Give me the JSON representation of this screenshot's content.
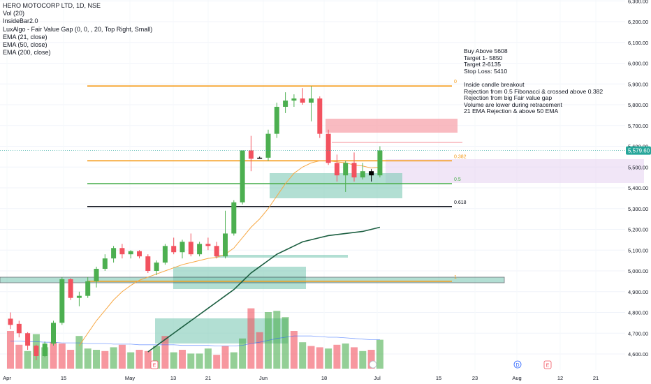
{
  "header": {
    "symbol_line": "HERO MOTOCORP LTD, 1D, NSE",
    "indicators": [
      "Vol (20)",
      "InsideBar2.0",
      "LuxAlgo - Fair Value Gap (0, 0, , 20, Top Right, Small)",
      "EMA (21, close)",
      "EMA (50, close)",
      "EMA (200, close)"
    ]
  },
  "notes": {
    "lines": [
      "Buy Above 5608",
      "Target 1- 5850",
      "Target 2-6135",
      "Stop Loss: 5410",
      "",
      "Inside candle breakout",
      "Rejection from 0.5 Fibonacci & crossed above 0.382",
      "Rejection from big Fair value gap",
      "Volume are lower during retracement",
      "21 EMA Rejection & above 50 EMA"
    ]
  },
  "colors": {
    "up": "#4caf50",
    "down": "#f2525f",
    "inside_bar": "#000000",
    "fib_0": "#f59a16",
    "fib_0382": "#f59a16",
    "fib_05": "#4caf50",
    "fib_0618": "#131722",
    "fib_1": "#f59a16",
    "ema21": "#f7a844",
    "ema50": "#1b5e40",
    "last_price_bg": "#26a69a"
  },
  "chart_data": {
    "type": "candlestick",
    "x_tick_labels": [
      "Apr",
      "15",
      "May",
      "13",
      "21",
      "Jun",
      "18",
      "Jul",
      "15",
      "23",
      "Aug",
      "12",
      "21"
    ],
    "y_tick_labels": [
      "4,600.00",
      "4,700.00",
      "4,800.00",
      "4,900.00",
      "5,000.00",
      "5,100.00",
      "5,200.00",
      "5,300.00",
      "5,400.00",
      "5,500.00",
      "5,600.00",
      "5,700.00",
      "5,800.00",
      "5,900.00",
      "6,000.00",
      "6,100.00",
      "6,200.00",
      "6,300.00"
    ],
    "ylim": [
      4570,
      6330
    ],
    "last_price": "5,579.60",
    "fib_levels": [
      {
        "label": "0",
        "price": 5890
      },
      {
        "label": "0.382",
        "price": 5530
      },
      {
        "label": "0.5",
        "price": 5420
      },
      {
        "label": "0.618",
        "price": 5310
      },
      {
        "label": "1",
        "price": 4950
      }
    ],
    "candles": [
      {
        "o": 4770,
        "h": 4800,
        "l": 4720,
        "c": 4740
      },
      {
        "o": 4745,
        "h": 4760,
        "l": 4680,
        "c": 4700
      },
      {
        "o": 4700,
        "h": 4705,
        "l": 4620,
        "c": 4640
      },
      {
        "o": 4640,
        "h": 4645,
        "l": 4570,
        "c": 4590
      },
      {
        "o": 4590,
        "h": 4660,
        "l": 4585,
        "c": 4650
      },
      {
        "o": 4650,
        "h": 4760,
        "l": 4640,
        "c": 4750
      },
      {
        "o": 4750,
        "h": 4970,
        "l": 4740,
        "c": 4960
      },
      {
        "o": 4960,
        "h": 4965,
        "l": 4860,
        "c": 4870
      },
      {
        "o": 4870,
        "h": 4900,
        "l": 4830,
        "c": 4880
      },
      {
        "o": 4880,
        "h": 4970,
        "l": 4870,
        "c": 4950
      },
      {
        "o": 4950,
        "h": 5020,
        "l": 4920,
        "c": 5010
      },
      {
        "o": 5010,
        "h": 5080,
        "l": 5000,
        "c": 5060
      },
      {
        "o": 5060,
        "h": 5120,
        "l": 5040,
        "c": 5110
      },
      {
        "o": 5110,
        "h": 5130,
        "l": 5060,
        "c": 5080
      },
      {
        "o": 5080,
        "h": 5100,
        "l": 5060,
        "c": 5095
      },
      {
        "o": 5095,
        "h": 5100,
        "l": 5060,
        "c": 5070
      },
      {
        "o": 5070,
        "h": 5080,
        "l": 4990,
        "c": 5000
      },
      {
        "o": 5000,
        "h": 5050,
        "l": 4980,
        "c": 5040
      },
      {
        "o": 5040,
        "h": 5130,
        "l": 5030,
        "c": 5120
      },
      {
        "o": 5120,
        "h": 5160,
        "l": 5080,
        "c": 5090
      },
      {
        "o": 5090,
        "h": 5150,
        "l": 5060,
        "c": 5140
      },
      {
        "o": 5140,
        "h": 5180,
        "l": 5070,
        "c": 5080
      },
      {
        "o": 5080,
        "h": 5140,
        "l": 5070,
        "c": 5130
      },
      {
        "o": 5130,
        "h": 5160,
        "l": 5100,
        "c": 5120
      },
      {
        "o": 5120,
        "h": 5140,
        "l": 5060,
        "c": 5070
      },
      {
        "o": 5070,
        "h": 5290,
        "l": 5060,
        "c": 5180
      },
      {
        "o": 5180,
        "h": 5340,
        "l": 5170,
        "c": 5330
      },
      {
        "o": 5330,
        "h": 5580,
        "l": 5320,
        "c": 5580
      },
      {
        "o": 5580,
        "h": 5650,
        "l": 5480,
        "c": 5540
      },
      {
        "o": 5540,
        "h": 5550,
        "l": 5540,
        "c": 5545
      },
      {
        "o": 5545,
        "h": 5680,
        "l": 5530,
        "c": 5660
      },
      {
        "o": 5660,
        "h": 5810,
        "l": 5640,
        "c": 5790
      },
      {
        "o": 5790,
        "h": 5860,
        "l": 5760,
        "c": 5820
      },
      {
        "o": 5820,
        "h": 5850,
        "l": 5790,
        "c": 5830
      },
      {
        "o": 5830,
        "h": 5880,
        "l": 5800,
        "c": 5810
      },
      {
        "o": 5810,
        "h": 5890,
        "l": 5720,
        "c": 5830
      },
      {
        "o": 5830,
        "h": 5840,
        "l": 5640,
        "c": 5660
      },
      {
        "o": 5660,
        "h": 5680,
        "l": 5510,
        "c": 5520
      },
      {
        "o": 5520,
        "h": 5560,
        "l": 5430,
        "c": 5460
      },
      {
        "o": 5460,
        "h": 5530,
        "l": 5380,
        "c": 5520
      },
      {
        "o": 5520,
        "h": 5570,
        "l": 5430,
        "c": 5450
      },
      {
        "o": 5450,
        "h": 5520,
        "l": 5440,
        "c": 5480
      },
      {
        "o": 5480,
        "h": 5490,
        "l": 5430,
        "c": 5460
      },
      {
        "o": 5460,
        "h": 5600,
        "l": 5450,
        "c": 5580
      }
    ],
    "inside_bars": [
      29,
      42
    ],
    "volume_up_indices": [
      2,
      3,
      4,
      8,
      9,
      10,
      12,
      14,
      17,
      19,
      21,
      22,
      23,
      26,
      27,
      30,
      31,
      32,
      34,
      37,
      39,
      41,
      43
    ],
    "volume": [
      60,
      38,
      28,
      55,
      34,
      42,
      40,
      30,
      52,
      32,
      30,
      28,
      34,
      38,
      26,
      30,
      28,
      36,
      52,
      26,
      30,
      24,
      24,
      32,
      22,
      36,
      26,
      48,
      96,
      58,
      90,
      92,
      82,
      60,
      42,
      36,
      34,
      32,
      38,
      40,
      34,
      28,
      30,
      46
    ],
    "volume_ma": [
      44,
      44,
      43,
      43,
      42,
      42,
      41,
      41,
      41,
      40,
      40,
      40,
      39,
      39,
      39,
      38,
      38,
      38,
      38,
      38,
      37,
      37,
      37,
      37,
      36,
      36,
      36,
      37,
      40,
      42,
      45,
      48,
      50,
      52,
      52,
      52,
      51,
      50,
      50,
      49,
      48,
      47,
      46,
      46
    ],
    "ema21": [
      null,
      null,
      null,
      null,
      null,
      null,
      null,
      null,
      4640,
      4700,
      4760,
      4810,
      4860,
      4900,
      4930,
      4955,
      4970,
      4985,
      5000,
      5015,
      5030,
      5040,
      5050,
      5060,
      5065,
      5080,
      5110,
      5160,
      5210,
      5250,
      5300,
      5360,
      5420,
      5470,
      5500,
      5520,
      5530,
      5530,
      5525,
      5520,
      5510,
      5505,
      5495,
      5500
    ],
    "ema50": [
      null,
      null,
      null,
      null,
      null,
      null,
      null,
      null,
      null,
      null,
      null,
      null,
      null,
      null,
      null,
      null,
      4610,
      4640,
      4670,
      4700,
      4730,
      4760,
      4790,
      4820,
      4850,
      4880,
      4910,
      4950,
      4990,
      5020,
      5050,
      5080,
      5100,
      5120,
      5140,
      5150,
      5160,
      5170,
      5175,
      5180,
      5185,
      5190,
      5200,
      5210
    ]
  }
}
